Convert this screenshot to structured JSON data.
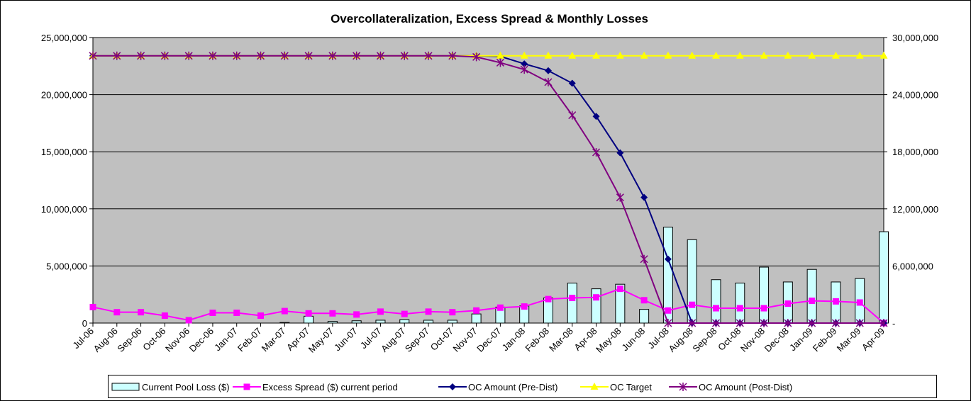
{
  "chart_data": {
    "type": "combo",
    "title": "Overcollateralization, Excess Spread & Monthly Losses",
    "categories": [
      "Jul-06",
      "Aug-06",
      "Sep-06",
      "Oct-06",
      "Nov-06",
      "Dec-06",
      "Jan-07",
      "Feb-07",
      "Mar-07",
      "Apr-07",
      "May-07",
      "Jun-07",
      "Jul-07",
      "Aug-07",
      "Sep-07",
      "Oct-07",
      "Nov-07",
      "Dec-07",
      "Jan-08",
      "Feb-08",
      "Mar-08",
      "Apr-08",
      "May-08",
      "Jun-08",
      "Jul-08",
      "Aug-08",
      "Sep-08",
      "Oct-08",
      "Nov-08",
      "Dec-08",
      "Jan-09",
      "Feb-09",
      "Mar-09",
      "Apr-09"
    ],
    "series": [
      {
        "name": "Current Pool Loss ($)",
        "kind": "bar",
        "color": "#ccffff",
        "values": [
          0,
          0,
          0,
          0,
          0,
          0,
          0,
          0,
          50000,
          600000,
          150000,
          200000,
          250000,
          300000,
          250000,
          250000,
          800000,
          1400000,
          1500000,
          2200000,
          3500000,
          3000000,
          3400000,
          1200000,
          8400000,
          7300000,
          3800000,
          3500000,
          4900000,
          3600000,
          4700000,
          3600000,
          3900000,
          8000000
        ]
      },
      {
        "name": "Excess Spread ($) current period",
        "kind": "line",
        "marker": "square",
        "color": "#ff00ff",
        "values": [
          1400000,
          950000,
          950000,
          650000,
          250000,
          900000,
          900000,
          650000,
          1050000,
          850000,
          850000,
          750000,
          1000000,
          800000,
          1000000,
          950000,
          1100000,
          1350000,
          1450000,
          2100000,
          2200000,
          2250000,
          3000000,
          2000000,
          1100000,
          1600000,
          1300000,
          1300000,
          1300000,
          1700000,
          1950000,
          1900000,
          1800000,
          0
        ]
      },
      {
        "name": "OC Amount (Pre-Dist)",
        "kind": "line",
        "marker": "diamond",
        "color": "#000080",
        "values": [
          23400000,
          23400000,
          23400000,
          23400000,
          23400000,
          23400000,
          23400000,
          23400000,
          23400000,
          23400000,
          23400000,
          23400000,
          23400000,
          23400000,
          23400000,
          23400000,
          23400000,
          23350000,
          22700000,
          22100000,
          21000000,
          18100000,
          14900000,
          11000000,
          5600000,
          0,
          0,
          0,
          0,
          0,
          0,
          0,
          0,
          0
        ]
      },
      {
        "name": "OC Target",
        "kind": "line",
        "marker": "triangle",
        "color": "#ffff00",
        "values": [
          23400000,
          23400000,
          23400000,
          23400000,
          23400000,
          23400000,
          23400000,
          23400000,
          23400000,
          23400000,
          23400000,
          23400000,
          23400000,
          23400000,
          23400000,
          23400000,
          23400000,
          23400000,
          23400000,
          23400000,
          23400000,
          23400000,
          23400000,
          23400000,
          23400000,
          23400000,
          23400000,
          23400000,
          23400000,
          23400000,
          23400000,
          23400000,
          23400000,
          23400000
        ]
      },
      {
        "name": "OC Amount (Post-Dist)",
        "kind": "line",
        "marker": "star",
        "color": "#800080",
        "values": [
          23400000,
          23400000,
          23400000,
          23400000,
          23400000,
          23400000,
          23400000,
          23400000,
          23400000,
          23400000,
          23400000,
          23400000,
          23400000,
          23400000,
          23400000,
          23400000,
          23300000,
          22800000,
          22200000,
          21100000,
          18200000,
          14950000,
          11000000,
          5600000,
          0,
          0,
          0,
          0,
          0,
          0,
          0,
          0,
          0,
          0
        ]
      }
    ],
    "ylim": [
      0,
      25000000
    ],
    "yticks": [
      0,
      {
        "value": 5000000,
        "label": "5,000,000"
      },
      {
        "value": 10000000,
        "label": "10,000,000"
      },
      {
        "value": 15000000,
        "label": "15,000,000"
      },
      {
        "value": 20000000,
        "label": "20,000,000"
      },
      {
        "value": 25000000,
        "label": "25,000,000"
      }
    ],
    "y2lim": [
      0,
      30000000
    ],
    "y2ticks": [
      {
        "value": 0,
        "label": "-"
      },
      {
        "value": 6000000,
        "label": "6,000,000"
      },
      {
        "value": 12000000,
        "label": "12,000,000"
      },
      {
        "value": 18000000,
        "label": "18,000,000"
      },
      {
        "value": 24000000,
        "label": "24,000,000"
      },
      {
        "value": 30000000,
        "label": "30,000,000"
      }
    ],
    "grid": true,
    "plot_background": "#c0c0c0",
    "legend": "bottom"
  }
}
